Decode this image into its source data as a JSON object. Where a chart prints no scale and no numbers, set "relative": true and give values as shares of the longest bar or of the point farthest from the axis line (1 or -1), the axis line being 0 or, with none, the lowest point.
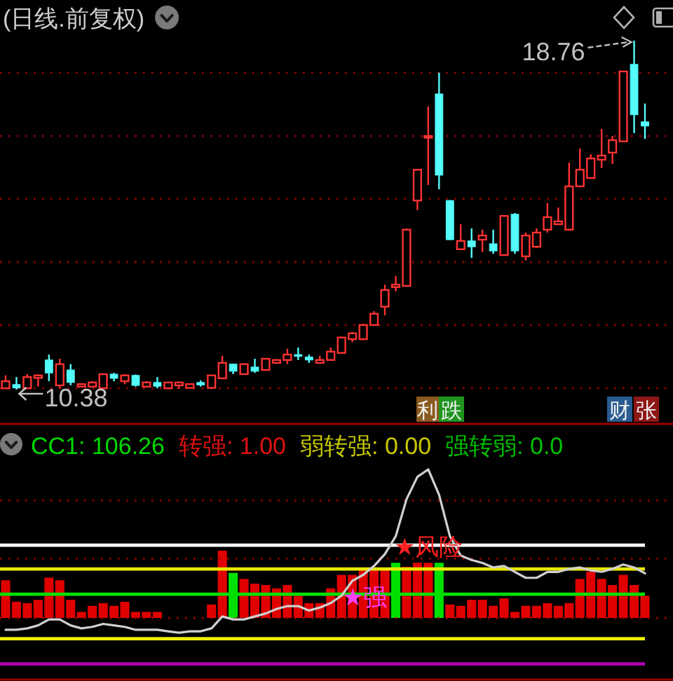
{
  "chart_data": [
    {
      "type": "candlestick",
      "title": "(日线.前复权)",
      "categories": [
        null,
        null,
        null,
        null,
        null,
        null,
        null,
        null,
        null,
        null,
        null,
        null,
        null,
        null,
        null,
        null,
        null,
        null,
        null,
        null,
        null,
        null,
        null,
        null,
        null,
        null,
        null,
        null,
        null,
        null,
        null,
        null,
        null,
        null,
        null,
        null,
        null,
        null,
        null,
        null,
        null,
        null,
        null,
        null,
        null,
        null,
        null,
        null,
        null,
        null,
        null,
        null,
        null,
        null,
        null,
        null,
        null,
        null,
        null,
        null
      ],
      "ohlc": [
        [
          10.41,
          10.72,
          10.4,
          10.58
        ],
        [
          10.5,
          10.68,
          10.38,
          10.42
        ],
        [
          10.41,
          10.75,
          10.4,
          10.68
        ],
        [
          10.66,
          10.74,
          10.45,
          10.72
        ],
        [
          11.09,
          11.22,
          10.58,
          10.78
        ],
        [
          10.48,
          11.12,
          10.41,
          10.99
        ],
        [
          10.85,
          10.99,
          10.48,
          10.55
        ],
        [
          10.45,
          10.53,
          10.43,
          10.51
        ],
        [
          10.45,
          10.58,
          10.43,
          10.55
        ],
        [
          10.41,
          10.76,
          10.4,
          10.75
        ],
        [
          10.75,
          10.78,
          10.58,
          10.65
        ],
        [
          10.58,
          10.75,
          10.51,
          10.72
        ],
        [
          10.72,
          10.74,
          10.45,
          10.48
        ],
        [
          10.45,
          10.58,
          10.43,
          10.55
        ],
        [
          10.55,
          10.68,
          10.41,
          10.46
        ],
        [
          10.41,
          10.56,
          10.4,
          10.55
        ],
        [
          10.48,
          10.57,
          10.4,
          10.55
        ],
        [
          10.42,
          10.52,
          10.41,
          10.51
        ],
        [
          10.55,
          10.6,
          10.45,
          10.49
        ],
        [
          10.42,
          10.73,
          10.41,
          10.72
        ],
        [
          10.65,
          11.19,
          10.64,
          11.02
        ],
        [
          10.99,
          11.0,
          10.75,
          10.82
        ],
        [
          10.75,
          11.0,
          10.74,
          10.99
        ],
        [
          10.92,
          11.12,
          10.78,
          10.82
        ],
        [
          10.85,
          11.13,
          10.84,
          11.12
        ],
        [
          11.02,
          11.11,
          11.0,
          11.09
        ],
        [
          11.09,
          11.36,
          10.99,
          11.22
        ],
        [
          11.22,
          11.39,
          11.09,
          11.19
        ],
        [
          11.16,
          11.22,
          11.02,
          11.09
        ],
        [
          11.02,
          11.19,
          11.01,
          11.09
        ],
        [
          11.09,
          11.39,
          11.08,
          11.29
        ],
        [
          11.26,
          11.65,
          11.25,
          11.63
        ],
        [
          11.59,
          11.76,
          11.52,
          11.73
        ],
        [
          11.59,
          11.96,
          11.57,
          11.93
        ],
        [
          11.93,
          12.26,
          11.92,
          12.2
        ],
        [
          12.37,
          12.9,
          12.16,
          12.77
        ],
        [
          12.84,
          13.11,
          12.74,
          12.9
        ],
        [
          12.87,
          14.24,
          12.86,
          14.22
        ],
        [
          14.92,
          15.67,
          14.69,
          15.66
        ],
        [
          16.44,
          17.18,
          15.29,
          16.47
        ],
        [
          17.48,
          17.99,
          15.19,
          15.53
        ],
        [
          14.92,
          14.93,
          13.97,
          13.98
        ],
        [
          13.75,
          14.35,
          13.74,
          13.95
        ],
        [
          13.95,
          14.25,
          13.54,
          13.81
        ],
        [
          13.98,
          14.22,
          13.68,
          14.08
        ],
        [
          13.88,
          14.22,
          13.64,
          13.71
        ],
        [
          13.61,
          14.56,
          13.6,
          14.55
        ],
        [
          14.59,
          14.62,
          13.64,
          13.71
        ],
        [
          13.58,
          14.15,
          13.48,
          14.08
        ],
        [
          13.81,
          14.25,
          13.78,
          14.15
        ],
        [
          14.22,
          14.86,
          14.15,
          14.52
        ],
        [
          14.35,
          14.75,
          14.34,
          14.42
        ],
        [
          14.22,
          15.83,
          14.21,
          15.26
        ],
        [
          15.26,
          16.17,
          15.25,
          15.66
        ],
        [
          15.46,
          16.03,
          15.45,
          15.93
        ],
        [
          15.9,
          16.64,
          15.7,
          16.0
        ],
        [
          16.07,
          16.47,
          15.8,
          16.37
        ],
        [
          16.34,
          18.03,
          16.33,
          18.02
        ],
        [
          18.19,
          18.76,
          16.54,
          16.98
        ],
        [
          16.81,
          17.25,
          16.4,
          16.71
        ]
      ],
      "colors": [
        "#ff3232",
        "#54fcfc",
        "#ff3232",
        "#ff3232",
        "#54fcfc",
        "#ff3232",
        "#54fcfc",
        "#ff3232",
        "#ff3232",
        "#ff3232",
        "#54fcfc",
        "#ff3232",
        "#54fcfc",
        "#ff3232",
        "#54fcfc",
        "#ff3232",
        "#ff3232",
        "#ff3232",
        "#54fcfc",
        "#ff3232",
        "#ff3232",
        "#54fcfc",
        "#ff3232",
        "#54fcfc",
        "#ff3232",
        "#ff3232",
        "#ff3232",
        "#54fcfc",
        "#54fcfc",
        "#ff3232",
        "#ff3232",
        "#ff3232",
        "#ff3232",
        "#ff3232",
        "#ff3232",
        "#ff3232",
        "#ff3232",
        "#ff3232",
        "#ff3232",
        "#ff3232",
        "#54fcfc",
        "#54fcfc",
        "#ff3232",
        "#54fcfc",
        "#ff3232",
        "#54fcfc",
        "#ff3232",
        "#54fcfc",
        "#ff3232",
        "#ff3232",
        "#ff3232",
        "#ff3232",
        "#ff3232",
        "#ff3232",
        "#ff3232",
        "#ff3232",
        "#ff3232",
        "#ff3232",
        "#54fcfc",
        "#54fcfc"
      ],
      "yticks": [
        {
          "value": 10.41,
          "label": null
        },
        {
          "value": 11.93,
          "label": null
        },
        {
          "value": 13.44,
          "label": null
        },
        {
          "value": 14.96,
          "label": null
        },
        {
          "value": 16.47,
          "label": null
        },
        {
          "value": 17.99,
          "label": null
        }
      ],
      "grid": "y",
      "annotations": [
        "18.76",
        "10.38",
        "利",
        "跌",
        "财",
        "张"
      ]
    },
    {
      "type": "bar",
      "relative": true,
      "stacked": true,
      "categories": [
        null,
        null,
        null,
        null,
        null,
        null,
        null,
        null,
        null,
        null,
        null,
        null,
        null,
        null,
        null,
        null,
        null,
        null,
        null,
        null,
        null,
        null,
        null,
        null,
        null,
        null,
        null,
        null,
        null,
        null,
        null,
        null,
        null,
        null,
        null,
        null,
        null,
        null,
        null,
        null,
        null,
        null,
        null,
        null,
        null,
        null,
        null,
        null,
        null,
        null,
        null,
        null,
        null,
        null,
        null,
        null,
        null,
        null,
        null,
        null
      ],
      "series": [
        {
          "color": "#e00000",
          "values": [
            0.56,
            0.24,
            0.22,
            0.27,
            0.6,
            0.56,
            0.27,
            0.09,
            0.18,
            0.22,
            0.18,
            0.24,
            0.09,
            0.09,
            0.09,
            null,
            null,
            null,
            null,
            0.2,
            1.0,
            null,
            0.58,
            0.51,
            0.49,
            0.44,
            0.49,
            0.33,
            0.22,
            0.22,
            0.44,
            0.64,
            0.64,
            0.71,
            0.71,
            0.71,
            null,
            0.76,
            0.82,
            0.82,
            null,
            0.2,
            0.18,
            0.27,
            0.27,
            0.18,
            0.29,
            0.09,
            0.18,
            0.18,
            0.22,
            0.18,
            0.22,
            0.58,
            0.69,
            0.58,
            0.49,
            0.64,
            0.49,
            0.33
          ]
        },
        {
          "color": "#00e000",
          "values": [
            null,
            null,
            null,
            null,
            null,
            null,
            null,
            null,
            null,
            null,
            null,
            null,
            null,
            null,
            null,
            null,
            null,
            null,
            null,
            null,
            null,
            0.67,
            null,
            null,
            null,
            null,
            null,
            null,
            null,
            null,
            null,
            null,
            null,
            null,
            null,
            null,
            0.82,
            null,
            null,
            null,
            0.82,
            null,
            null,
            null,
            null,
            null,
            null,
            null,
            null,
            null,
            null,
            null,
            null,
            null,
            null,
            null,
            null,
            null,
            null,
            null
          ]
        }
      ],
      "ref_lines": [
        {
          "axis": "y",
          "value": 0,
          "color": "#a00000",
          "line_style": "dotted"
        }
      ],
      "annotations": [
        "CC1: 106.26",
        "转强: 1.00",
        "弱转强: 0.00",
        "强转弱: 0.0"
      ]
    },
    {
      "type": "line",
      "relative": true,
      "categories": [
        null,
        null,
        null,
        null,
        null,
        null,
        null,
        null,
        null,
        null,
        null,
        null,
        null,
        null,
        null,
        null,
        null,
        null,
        null,
        null,
        null,
        null,
        null,
        null,
        null,
        null,
        null,
        null,
        null,
        null,
        null,
        null,
        null,
        null,
        null,
        null,
        null,
        null,
        null,
        null,
        null,
        null,
        null,
        null,
        null,
        null,
        null,
        null,
        null,
        null,
        null,
        null,
        null,
        null,
        null,
        null,
        null,
        null,
        null,
        null
      ],
      "series": [
        {
          "color": "#d0d0d0",
          "values": [
            -0.08,
            -0.08,
            -0.07,
            -0.05,
            -0.01,
            -0.01,
            -0.05,
            -0.07,
            -0.06,
            -0.04,
            -0.05,
            -0.06,
            -0.08,
            -0.08,
            -0.08,
            -0.09,
            -0.1,
            -0.09,
            -0.09,
            -0.07,
            0.01,
            -0.01,
            -0.01,
            0.01,
            0.03,
            0.06,
            0.08,
            0.08,
            0.05,
            0.07,
            0.1,
            0.15,
            0.25,
            0.29,
            0.35,
            0.43,
            0.55,
            0.8,
            0.95,
            1.0,
            0.83,
            0.55,
            0.42,
            0.39,
            0.37,
            0.34,
            0.35,
            0.31,
            0.27,
            0.27,
            0.31,
            0.31,
            0.33,
            0.34,
            0.32,
            0.31,
            0.33,
            0.36,
            0.34,
            0.3
          ]
        }
      ],
      "ref_lines": [
        {
          "axis": "y",
          "value": 0.79,
          "color": "#a00000",
          "line_style": "dotted"
        },
        {
          "axis": "y",
          "value": 0.4,
          "color": "#a00000",
          "line_style": "dotted"
        },
        {
          "axis": "y",
          "value": 0,
          "color": "#a00000",
          "line_style": "dotted"
        },
        {
          "axis": "y",
          "value": 0.49,
          "color": "#ffffff"
        },
        {
          "axis": "y",
          "value": 0.33,
          "color": "#e8e800"
        },
        {
          "axis": "y",
          "value": 0.16,
          "color": "#00e000"
        },
        {
          "axis": "y",
          "value": -0.14,
          "color": "#f0f000"
        },
        {
          "axis": "y",
          "value": -0.31,
          "color": "#b000b0"
        }
      ],
      "annotations": [
        "★风险",
        "★强"
      ]
    }
  ]
}
